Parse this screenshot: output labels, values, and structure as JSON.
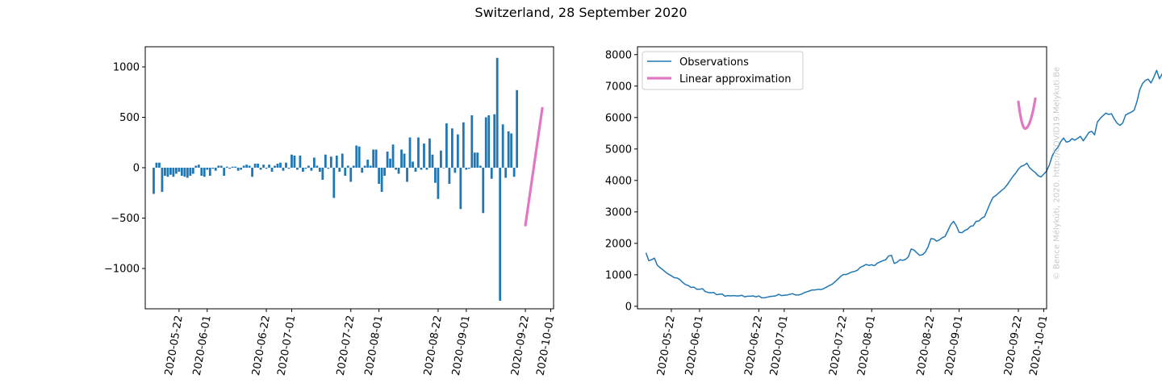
{
  "figure": {
    "title": "Switzerland, 28 September 2020",
    "watermark": "© Bence Mélykúti, 2020. http://COVID19.Melykuti.Be"
  },
  "colors": {
    "observations": "#1f77b4",
    "approximation": "#e377c2",
    "axis": "#000000",
    "watermark": "#c8c8c8"
  },
  "chart_data": [
    {
      "type": "bar",
      "description_id": "daily-change-bars",
      "x_type": "date",
      "x_start": "2020-05-13",
      "x_tick_labels": [
        "2020-05-22",
        "2020-06-01",
        "2020-06-22",
        "2020-07-01",
        "2020-07-22",
        "2020-08-01",
        "2020-08-22",
        "2020-09-01",
        "2020-09-22",
        "2020-10-01"
      ],
      "xlim": [
        "2020-05-10",
        "2020-10-02"
      ],
      "ylim": [
        -1400,
        1200
      ],
      "y_ticks": [
        -1000,
        -500,
        0,
        500,
        1000
      ],
      "y_tick_labels": [
        "−1000",
        "−500",
        "0",
        "500",
        "1000"
      ],
      "bar_color": "#1f77b4",
      "values": [
        -260,
        50,
        50,
        -240,
        -80,
        -90,
        -70,
        -90,
        -60,
        -40,
        -80,
        -90,
        -100,
        -80,
        -60,
        20,
        30,
        -80,
        -90,
        -20,
        -80,
        -10,
        -30,
        20,
        20,
        -80,
        10,
        -10,
        10,
        10,
        -30,
        -20,
        20,
        30,
        20,
        -90,
        40,
        40,
        -20,
        30,
        -10,
        30,
        -40,
        20,
        40,
        50,
        -30,
        50,
        -10,
        130,
        120,
        -20,
        120,
        -40,
        -10,
        20,
        -30,
        100,
        20,
        -40,
        -120,
        130,
        -10,
        110,
        -300,
        120,
        -40,
        140,
        -80,
        20,
        -140,
        20,
        220,
        210,
        -50,
        20,
        80,
        20,
        180,
        180,
        -160,
        -240,
        -80,
        160,
        90,
        230,
        -20,
        -60,
        180,
        140,
        -140,
        300,
        60,
        -40,
        300,
        -20,
        240,
        -20,
        290,
        130,
        -150,
        -310,
        170,
        0,
        440,
        -160,
        390,
        -50,
        330,
        -410,
        450,
        -20,
        -10,
        520,
        150,
        150,
        20,
        -450,
        500,
        520,
        -110,
        530,
        1090,
        -1320,
        430,
        -100,
        360,
        340,
        -90,
        770
      ],
      "approximation": {
        "label": "Linear approximation",
        "color": "#e377c2",
        "x": [
          "2020-09-22",
          "2020-09-28"
        ],
        "y": [
          -570,
          590
        ]
      }
    },
    {
      "type": "line",
      "description_id": "cumulative-active-line",
      "x_type": "date",
      "x_start": "2020-05-13",
      "x_tick_labels": [
        "2020-05-22",
        "2020-06-01",
        "2020-06-22",
        "2020-07-01",
        "2020-07-22",
        "2020-08-01",
        "2020-08-22",
        "2020-09-01",
        "2020-09-22",
        "2020-10-01"
      ],
      "xlim": [
        "2020-05-10",
        "2020-10-02"
      ],
      "ylim": [
        -80,
        8250
      ],
      "y_ticks": [
        0,
        1000,
        2000,
        3000,
        4000,
        5000,
        6000,
        7000,
        8000
      ],
      "y_tick_labels": [
        "0",
        "1000",
        "2000",
        "3000",
        "4000",
        "5000",
        "6000",
        "7000",
        "8000"
      ],
      "legend_position": "top-left",
      "series": [
        {
          "name": "Observations",
          "color": "#1f77b4",
          "values": [
            1700,
            1450,
            1480,
            1530,
            1310,
            1230,
            1160,
            1080,
            1020,
            970,
            910,
            900,
            850,
            760,
            690,
            660,
            600,
            610,
            540,
            540,
            560,
            470,
            440,
            430,
            440,
            370,
            380,
            390,
            320,
            340,
            330,
            340,
            330,
            330,
            350,
            300,
            320,
            320,
            330,
            300,
            330,
            270,
            270,
            290,
            310,
            320,
            330,
            380,
            340,
            350,
            360,
            380,
            400,
            360,
            360,
            380,
            430,
            460,
            490,
            520,
            520,
            540,
            530,
            560,
            610,
            660,
            700,
            780,
            860,
            950,
            1010,
            1010,
            1050,
            1090,
            1110,
            1150,
            1240,
            1280,
            1330,
            1300,
            1320,
            1290,
            1370,
            1410,
            1450,
            1480,
            1600,
            1620,
            1360,
            1400,
            1480,
            1460,
            1490,
            1570,
            1820,
            1790,
            1700,
            1620,
            1640,
            1720,
            1890,
            2150,
            2140,
            2070,
            2110,
            2180,
            2220,
            2400,
            2590,
            2700,
            2560,
            2350,
            2340,
            2410,
            2450,
            2540,
            2560,
            2700,
            2710,
            2800,
            2850,
            3060,
            3280,
            3460,
            3520,
            3600,
            3680,
            3750,
            3860,
            3990,
            4120,
            4230,
            4360,
            4450,
            4480,
            4550,
            4400,
            4320,
            4250,
            4150,
            4110,
            4200,
            4300,
            4500,
            4780,
            4950,
            5050,
            5230,
            5350,
            5220,
            5240,
            5330,
            5280,
            5340,
            5400,
            5260,
            5390,
            5530,
            5560,
            5450,
            5860,
            5970,
            6060,
            6140,
            6100,
            6120,
            5950,
            5820,
            5750,
            5830,
            6080,
            6130,
            6170,
            6230,
            6500,
            6880,
            7080,
            7180,
            7220,
            7100,
            7280,
            7500,
            7230,
            7390,
            7600,
            7650,
            7600,
            7540,
            7800,
            7830
          ]
        }
      ],
      "approximation": {
        "label": "Linear approximation",
        "color": "#e377c2",
        "x": [
          "2020-09-22",
          "2020-09-28"
        ],
        "y_start": 6500,
        "min": 5650,
        "y_end": 6600
      }
    }
  ]
}
